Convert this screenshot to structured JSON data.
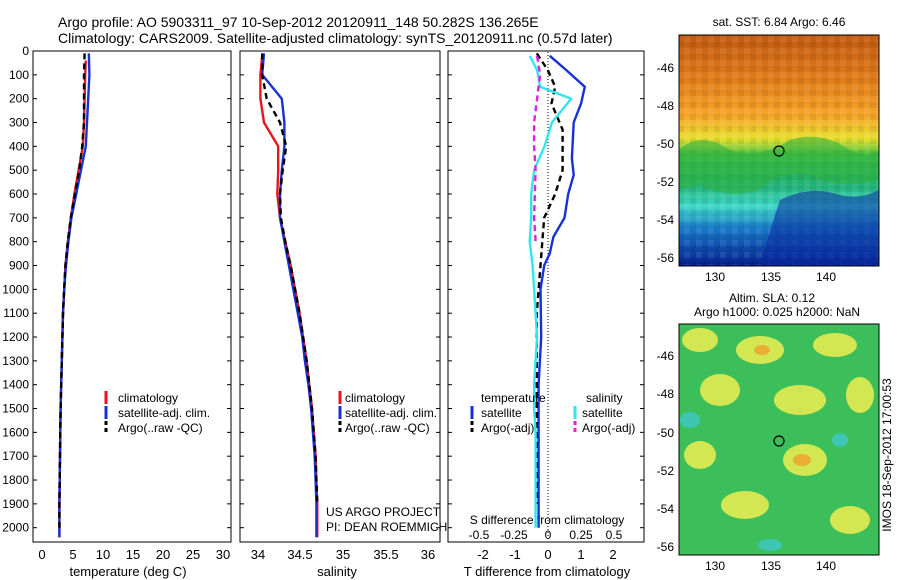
{
  "header": {
    "line1": "Argo profile: AO 5903311_97 10-Sep-2012 20120911_148 50.282S 136.265E",
    "line2": "Climatology: CARS2009. Satellite-adjusted climatology: synTS_20120911.nc (0.57d later)"
  },
  "colors": {
    "climatology": "#e8141e",
    "satellite": "#1830d8",
    "argo": "#000000",
    "s_satellite": "#30e6ee",
    "s_argo": "#e020e0"
  },
  "depth_ticks": [
    "0",
    "100",
    "200",
    "300",
    "400",
    "500",
    "600",
    "700",
    "800",
    "900",
    "1000",
    "1100",
    "1200",
    "1300",
    "1400",
    "1500",
    "1600",
    "1700",
    "1800",
    "1900",
    "2000"
  ],
  "panels": {
    "temperature": {
      "xlabel": "temperature (deg C)",
      "xticks": [
        "0",
        "5",
        "10",
        "15",
        "20",
        "25",
        "30"
      ],
      "legend": [
        "climatology",
        "satellite-adj. clim.",
        "Argo(..raw -QC)"
      ]
    },
    "salinity": {
      "xlabel": "salinity",
      "xticks": [
        "34",
        "34.5",
        "35",
        "35.5",
        "36"
      ],
      "legend": [
        "climatology",
        "satellite-adj. clim.",
        "Argo(..raw -QC)"
      ],
      "note1": "US ARGO PROJECT",
      "note2": "PI: DEAN ROEMMICH"
    },
    "difference": {
      "top_xlabel": "S difference from climatology",
      "top_xticks": [
        "-0.5",
        "-0.25",
        "0",
        "0.25",
        "0.5"
      ],
      "bottom_xlabel": "T difference from climatology",
      "bottom_xticks": [
        "-2",
        "-1",
        "0",
        "1",
        "2"
      ],
      "legend_t_head": "temperature",
      "legend_s_head": "salinity",
      "legend_t": [
        "satellite",
        "Argo(-adj)"
      ],
      "legend_s": [
        "satellite",
        "Argo(-adj)"
      ]
    }
  },
  "maps": {
    "sst_title": "sat. SST: 6.84 Argo: 6.46",
    "sla_title1": "Altim. SLA: 0.12",
    "sla_title2": "Argo h1000: 0.025 h2000: NaN",
    "yticks": [
      "-46",
      "-48",
      "-50",
      "-52",
      "-54",
      "-56"
    ],
    "xticks": [
      "130",
      "135",
      "140"
    ],
    "stamp": "IMOS 18-Sep-2012 17:00:53"
  },
  "chart_data": [
    {
      "type": "line",
      "title": "",
      "xlabel": "temperature (deg C)",
      "ylabel": "",
      "xlim": [
        -2,
        31
      ],
      "ylim": [
        2060,
        0
      ],
      "series": [
        {
          "name": "climatology",
          "x": [
            6.8,
            6.7,
            6.6,
            6.5,
            6.3,
            5.6,
            4.9,
            4.3,
            3.8,
            3.4,
            3.2,
            3.0,
            2.9,
            2.8,
            2.7,
            2.6,
            2.55,
            2.5,
            2.45,
            2.4,
            2.4
          ],
          "y": [
            40,
            100,
            200,
            300,
            400,
            500,
            600,
            700,
            800,
            900,
            1000,
            1100,
            1200,
            1300,
            1400,
            1500,
            1600,
            1700,
            1800,
            1900,
            2040
          ]
        },
        {
          "name": "satellite-adj. clim.",
          "x": [
            7.3,
            7.4,
            7.2,
            7.0,
            6.8,
            6.0,
            5.2,
            4.4,
            3.9,
            3.5,
            3.2,
            3.0,
            2.9,
            2.8,
            2.7,
            2.6,
            2.55,
            2.5,
            2.45,
            2.4,
            2.4
          ],
          "y": [
            10,
            100,
            200,
            300,
            400,
            500,
            600,
            700,
            800,
            900,
            1000,
            1100,
            1200,
            1300,
            1400,
            1500,
            1600,
            1700,
            1800,
            1900,
            2040
          ]
        },
        {
          "name": "Argo(..raw -QC)",
          "x": [
            6.6,
            6.5,
            6.5,
            6.5,
            6.2,
            5.7,
            5.0,
            4.3,
            3.8,
            3.4,
            3.2,
            3.0,
            2.9,
            2.8,
            2.7,
            2.6,
            2.55,
            2.5,
            2.45,
            2.4,
            2.4
          ],
          "y": [
            10,
            100,
            200,
            300,
            400,
            500,
            600,
            700,
            800,
            900,
            1000,
            1100,
            1200,
            1300,
            1400,
            1500,
            1600,
            1700,
            1800,
            1900,
            2000
          ]
        }
      ]
    },
    {
      "type": "line",
      "title": "",
      "xlabel": "salinity",
      "ylabel": "",
      "xlim": [
        33.85,
        36.1
      ],
      "ylim": [
        2060,
        0
      ],
      "series": [
        {
          "name": "climatology",
          "x": [
            34.1,
            34.08,
            34.08,
            34.12,
            34.28,
            34.28,
            34.27,
            34.3,
            34.36,
            34.42,
            34.47,
            34.52,
            34.56,
            34.6,
            34.63,
            34.66,
            34.68,
            34.7,
            34.71,
            34.72,
            34.72
          ],
          "y": [
            20,
            100,
            200,
            300,
            400,
            500,
            600,
            700,
            800,
            900,
            1000,
            1100,
            1200,
            1300,
            1400,
            1500,
            1600,
            1700,
            1800,
            1900,
            2040
          ]
        },
        {
          "name": "satellite-adj. clim.",
          "x": [
            34.12,
            34.1,
            34.32,
            34.35,
            34.35,
            34.32,
            34.3,
            34.3,
            34.35,
            34.4,
            34.45,
            34.5,
            34.55,
            34.58,
            34.62,
            34.65,
            34.67,
            34.69,
            34.7,
            34.71,
            34.71
          ],
          "y": [
            10,
            100,
            200,
            300,
            400,
            500,
            600,
            700,
            800,
            900,
            1000,
            1100,
            1200,
            1300,
            1400,
            1500,
            1600,
            1700,
            1800,
            1900,
            2040
          ]
        },
        {
          "name": "Argo(..raw -QC)",
          "x": [
            34.1,
            34.1,
            34.15,
            34.3,
            34.37,
            34.33,
            34.3,
            34.31,
            34.36,
            34.42,
            34.47,
            34.52,
            34.56,
            34.6,
            34.63,
            34.66,
            34.68,
            34.7,
            34.71,
            34.72
          ],
          "y": [
            10,
            100,
            200,
            300,
            400,
            500,
            600,
            700,
            800,
            900,
            1000,
            1100,
            1200,
            1300,
            1400,
            1500,
            1600,
            1700,
            1800,
            1900
          ]
        }
      ]
    },
    {
      "type": "line",
      "title": "",
      "xlabel": "T difference from climatology",
      "ylabel": "",
      "xlim": [
        -2.4,
        2.9
      ],
      "ylim": [
        2060,
        0
      ],
      "series": [
        {
          "name": "satellite",
          "x": [
            0.35,
            0.8,
            1.3,
            1.2,
            1.0,
            0.95,
            1.0,
            0.85,
            0.75,
            0.45,
            0.35,
            0.2,
            0.1,
            0.12,
            0.05,
            0.05,
            0.05,
            0.05,
            0.05,
            0.05
          ],
          "y": [
            20,
            80,
            150,
            220,
            300,
            450,
            520,
            600,
            700,
            780,
            850,
            900,
            1000,
            1200,
            1400,
            1600,
            1700,
            1800,
            1900,
            2000
          ]
        },
        {
          "name": "Argo(-adj)",
          "x": [
            0.0,
            0.3,
            0.5,
            0.4,
            0.7,
            0.7,
            0.5,
            0.2,
            0.15,
            0.1,
            0.05,
            0.0,
            0.0,
            0.0,
            0.0,
            0.0,
            0.0,
            0.0,
            0.0,
            0.0
          ],
          "y": [
            10,
            80,
            150,
            220,
            330,
            500,
            600,
            700,
            800,
            900,
            1000,
            1100,
            1200,
            1300,
            1400,
            1500,
            1600,
            1700,
            1800,
            1900
          ]
        }
      ]
    },
    {
      "type": "line",
      "title": "",
      "xlabel": "S difference from climatology",
      "ylabel": "",
      "xlim": [
        -0.6,
        0.72
      ],
      "ylim": [
        2060,
        0
      ],
      "series": [
        {
          "name": "satellite",
          "x": [
            -0.05,
            0.0,
            0.02,
            0.23,
            0.1,
            0.05,
            -0.02,
            -0.04,
            -0.04,
            -0.05,
            -0.03,
            -0.02,
            -0.01,
            0.0,
            -0.01,
            -0.02,
            -0.02,
            -0.01,
            -0.01,
            -0.01,
            -0.01
          ],
          "y": [
            20,
            80,
            150,
            200,
            300,
            400,
            500,
            600,
            700,
            800,
            900,
            1000,
            1100,
            1200,
            1300,
            1400,
            1500,
            1600,
            1700,
            1800,
            2000
          ]
        },
        {
          "name": "Argo(-adj)",
          "x": [
            0.0,
            0.02,
            0.0,
            -0.02,
            -0.02,
            -0.01,
            -0.02,
            -0.01
          ],
          "y": [
            20,
            100,
            200,
            300,
            400,
            500,
            700,
            800
          ]
        }
      ]
    }
  ]
}
